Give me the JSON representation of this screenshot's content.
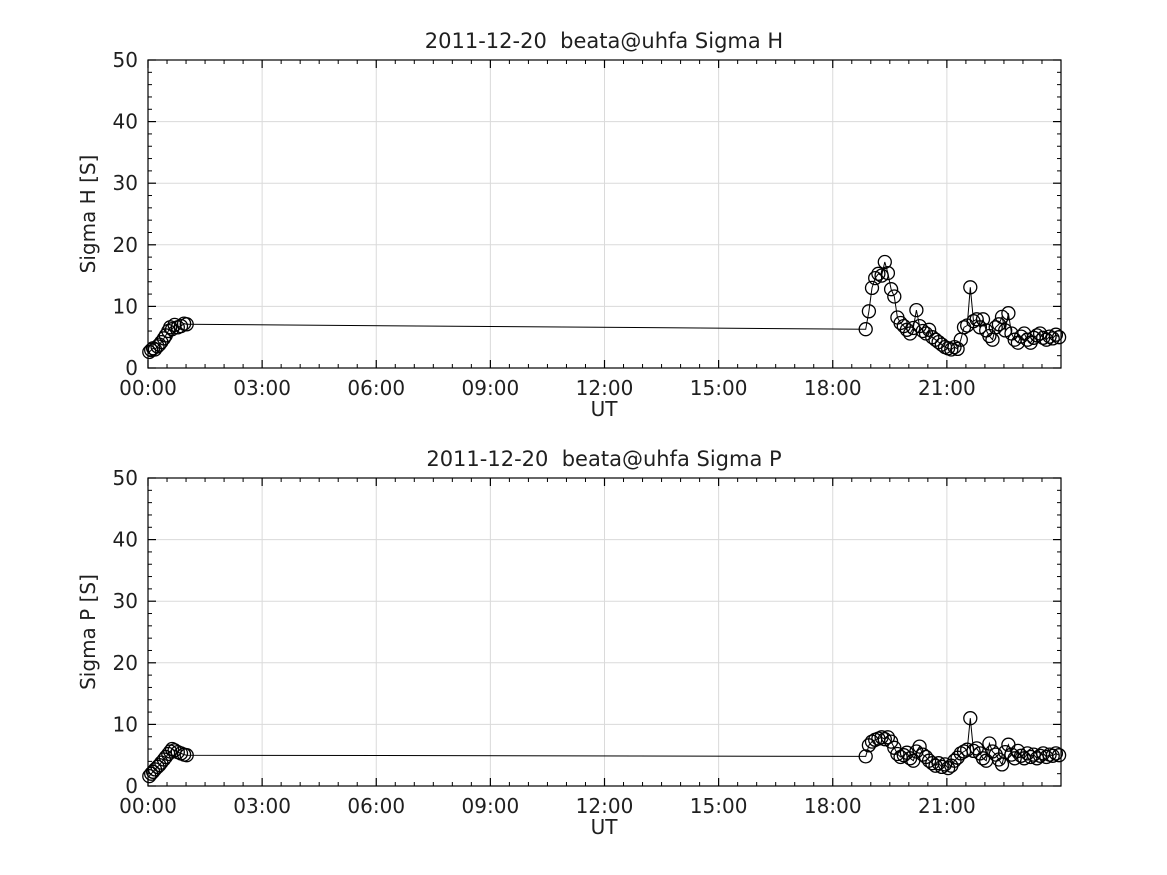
{
  "figure": {
    "background": "#ffffff",
    "axis_color": "#000000",
    "grid_color": "#dadada",
    "line_color": "#000000",
    "marker_style": "open-circle",
    "text_color": "#1f1f1f"
  },
  "chart_data": [
    {
      "type": "line",
      "title": "2011-12-20  beata@uhfa Sigma H",
      "xlabel": "UT",
      "ylabel": "Sigma H [S]",
      "xlim_hours": [
        0,
        24
      ],
      "ylim": [
        0,
        50
      ],
      "xticks": [
        "00:00",
        "03:00",
        "06:00",
        "09:00",
        "12:00",
        "15:00",
        "18:00",
        "21:00"
      ],
      "xtick_hours": [
        0,
        3,
        6,
        9,
        12,
        15,
        18,
        21
      ],
      "yticks": [
        0,
        10,
        20,
        30,
        40,
        50
      ],
      "minor_x_step_hours": 0.5,
      "minor_y_step": 2,
      "grid": true,
      "legend": "none",
      "series": [
        {
          "name": "Sigma H",
          "x": [
            0.033,
            0.083,
            0.133,
            0.183,
            0.25,
            0.3,
            0.35,
            0.417,
            0.467,
            0.533,
            0.583,
            0.633,
            0.7,
            0.783,
            0.867,
            0.95,
            1.017,
            18.867,
            18.95,
            19.033,
            19.117,
            19.2,
            19.283,
            19.367,
            19.45,
            19.533,
            19.617,
            19.7,
            19.783,
            19.867,
            19.95,
            20.033,
            20.117,
            20.2,
            20.283,
            20.367,
            20.45,
            20.533,
            20.617,
            20.7,
            20.783,
            20.867,
            20.95,
            21.033,
            21.117,
            21.2,
            21.283,
            21.367,
            21.45,
            21.533,
            21.617,
            21.7,
            21.783,
            21.867,
            21.95,
            22.033,
            22.117,
            22.2,
            22.283,
            22.367,
            22.45,
            22.533,
            22.617,
            22.7,
            22.783,
            22.867,
            22.95,
            23.033,
            23.117,
            23.2,
            23.283,
            23.367,
            23.45,
            23.533,
            23.617,
            23.7,
            23.783,
            23.867,
            23.95
          ],
          "y": [
            2.6,
            2.9,
            3.2,
            3.0,
            3.5,
            3.8,
            4.2,
            4.8,
            5.3,
            6.0,
            6.6,
            6.3,
            7.0,
            6.6,
            6.8,
            7.2,
            7.1,
            6.3,
            9.2,
            13.0,
            14.6,
            15.3,
            15.0,
            17.2,
            15.4,
            12.8,
            11.6,
            8.2,
            7.3,
            6.8,
            6.2,
            5.6,
            6.5,
            9.4,
            6.8,
            6.0,
            5.6,
            6.2,
            5.0,
            4.6,
            4.2,
            3.8,
            3.4,
            3.2,
            3.0,
            3.4,
            3.1,
            4.6,
            6.6,
            6.9,
            13.1,
            7.6,
            7.9,
            6.6,
            7.9,
            6.1,
            5.2,
            4.6,
            6.6,
            7.1,
            8.3,
            6.1,
            8.9,
            5.6,
            4.6,
            4.1,
            5.1,
            5.6,
            4.6,
            4.1,
            4.9,
            5.3,
            5.6,
            4.9,
            4.6,
            5.1,
            4.8,
            5.4,
            5.0
          ]
        }
      ]
    },
    {
      "type": "line",
      "title": "2011-12-20  beata@uhfa Sigma P",
      "xlabel": "UT",
      "ylabel": "Sigma P [S]",
      "xlim_hours": [
        0,
        24
      ],
      "ylim": [
        0,
        50
      ],
      "xticks": [
        "00:00",
        "03:00",
        "06:00",
        "09:00",
        "12:00",
        "15:00",
        "18:00",
        "21:00"
      ],
      "xtick_hours": [
        0,
        3,
        6,
        9,
        12,
        15,
        18,
        21
      ],
      "yticks": [
        0,
        10,
        20,
        30,
        40,
        50
      ],
      "minor_x_step_hours": 0.5,
      "minor_y_step": 2,
      "grid": true,
      "legend": "none",
      "series": [
        {
          "name": "Sigma P",
          "x": [
            0.033,
            0.083,
            0.133,
            0.183,
            0.25,
            0.3,
            0.35,
            0.417,
            0.467,
            0.533,
            0.583,
            0.633,
            0.7,
            0.783,
            0.867,
            0.95,
            1.017,
            18.867,
            18.95,
            19.033,
            19.117,
            19.2,
            19.283,
            19.367,
            19.45,
            19.533,
            19.617,
            19.7,
            19.783,
            19.867,
            19.95,
            20.033,
            20.117,
            20.2,
            20.283,
            20.367,
            20.45,
            20.533,
            20.617,
            20.7,
            20.783,
            20.867,
            20.95,
            21.033,
            21.117,
            21.2,
            21.283,
            21.367,
            21.45,
            21.533,
            21.617,
            21.7,
            21.783,
            21.867,
            21.95,
            22.033,
            22.117,
            22.2,
            22.283,
            22.367,
            22.45,
            22.533,
            22.617,
            22.7,
            22.783,
            22.867,
            22.95,
            23.033,
            23.117,
            23.2,
            23.283,
            23.367,
            23.45,
            23.533,
            23.617,
            23.7,
            23.783,
            23.867,
            23.95
          ],
          "y": [
            1.6,
            2.0,
            2.3,
            2.7,
            3.1,
            3.4,
            3.8,
            4.3,
            4.7,
            5.2,
            5.6,
            6.0,
            5.8,
            5.5,
            5.3,
            5.1,
            5.0,
            4.8,
            6.6,
            7.2,
            7.5,
            7.7,
            7.9,
            7.6,
            7.9,
            7.2,
            6.2,
            5.2,
            4.7,
            5.0,
            5.4,
            4.5,
            4.1,
            5.6,
            6.4,
            5.1,
            4.7,
            4.1,
            3.7,
            3.3,
            3.7,
            3.1,
            3.5,
            2.9,
            3.3,
            4.1,
            4.6,
            5.3,
            5.6,
            5.9,
            11.0,
            5.7,
            6.1,
            5.3,
            4.5,
            4.1,
            6.9,
            5.6,
            5.1,
            4.3,
            3.5,
            5.5,
            6.7,
            5.1,
            4.5,
            5.7,
            4.9,
            4.5,
            5.3,
            4.7,
            5.1,
            4.5,
            4.9,
            5.3,
            4.7,
            5.1,
            4.9,
            5.3,
            5.0
          ]
        }
      ]
    }
  ]
}
